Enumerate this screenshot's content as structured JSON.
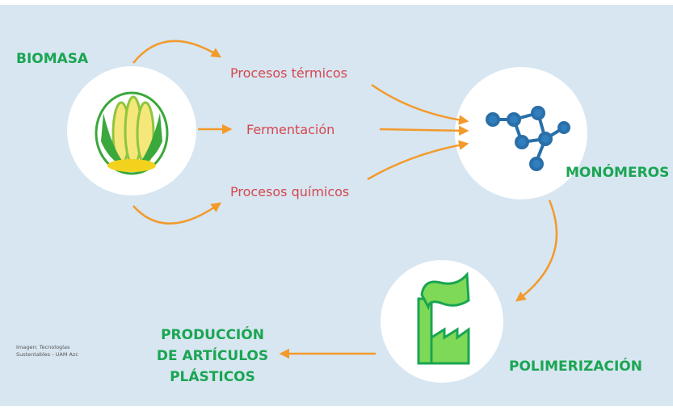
{
  "nodes": [
    {
      "label": "BIOMASA"
    },
    {
      "label": "MONÓMEROS"
    },
    {
      "label": "POLIMERIZACIÓN"
    },
    {
      "label": [
        "PRODUCCIÓN",
        "DE ARTÍCULOS",
        "PLÁSTICOS"
      ]
    }
  ],
  "processes": [
    "Procesos térmicos",
    "Fermentación",
    "Procesos químicos"
  ],
  "credit": [
    "Imagen: Tecnologías",
    "Sustentables - UAM Azc"
  ]
}
